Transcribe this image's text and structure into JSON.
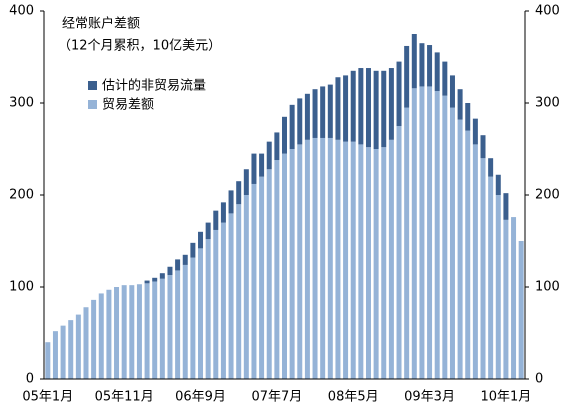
{
  "chart_data": {
    "type": "stacked_bar",
    "title": "经常账户差额",
    "subtitle": "（12个月累积，10亿美元）",
    "categories": [
      "05年1月",
      null,
      null,
      null,
      null,
      null,
      null,
      null,
      null,
      null,
      "05年11月",
      null,
      null,
      null,
      null,
      null,
      null,
      null,
      null,
      null,
      "06年9月",
      null,
      null,
      null,
      null,
      null,
      null,
      null,
      null,
      null,
      "07年7月",
      null,
      null,
      null,
      null,
      null,
      null,
      null,
      null,
      null,
      "08年5月",
      null,
      null,
      null,
      null,
      null,
      null,
      null,
      null,
      null,
      "09年3月",
      null,
      null,
      null,
      null,
      null,
      null,
      null,
      null,
      null,
      "10年1月",
      null,
      null
    ],
    "series": [
      {
        "name": "估计的非贸易流量",
        "color": "#3b5f8e",
        "values": [
          null,
          null,
          null,
          null,
          null,
          null,
          null,
          null,
          null,
          null,
          null,
          null,
          null,
          3,
          4,
          6,
          9,
          12,
          11,
          16,
          18,
          18,
          21,
          22,
          25,
          25,
          28,
          33,
          25,
          30,
          30,
          40,
          48,
          50,
          50,
          53,
          56,
          58,
          68,
          72,
          77,
          83,
          86,
          85,
          83,
          78,
          70,
          67,
          59,
          47,
          45,
          42,
          37,
          35,
          33,
          30,
          28,
          25,
          20,
          22,
          29,
          null,
          null
        ]
      },
      {
        "name": "贸易差额",
        "color": "#95b3d7",
        "values": [
          40,
          52,
          58,
          64,
          70,
          78,
          86,
          93,
          97,
          100,
          102,
          102,
          103,
          104,
          106,
          109,
          113,
          118,
          124,
          132,
          142,
          152,
          162,
          170,
          180,
          190,
          200,
          212,
          220,
          228,
          238,
          245,
          250,
          255,
          260,
          262,
          262,
          262,
          260,
          258,
          258,
          255,
          252,
          250,
          252,
          260,
          275,
          295,
          316,
          318,
          318,
          313,
          308,
          295,
          282,
          270,
          255,
          240,
          220,
          200,
          173,
          176,
          150
        ]
      }
    ],
    "ylim": [
      0,
      400
    ],
    "yticks": [
      0,
      100,
      200,
      300,
      400
    ],
    "y2lim": [
      0,
      400
    ],
    "y2ticks": [
      0,
      100,
      200,
      300,
      400
    ]
  }
}
